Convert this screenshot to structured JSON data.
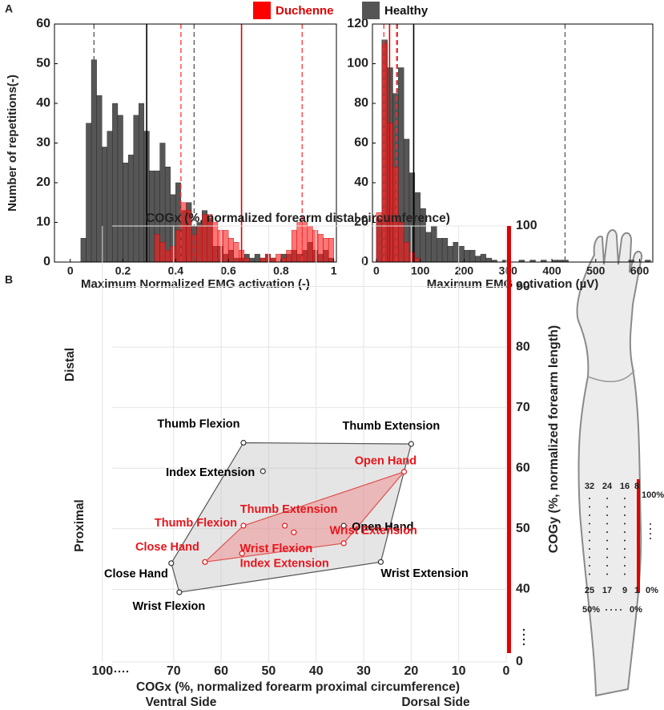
{
  "chart_data": [
    {
      "type": "histogram",
      "panel": "A",
      "xlabel": "Maximum Normalized EMG activation (-)",
      "ylabel": "Number of repetitions(-)",
      "bins": [
        0,
        0.02,
        0.04,
        0.06,
        0.08,
        0.1,
        0.12,
        0.14,
        0.16,
        0.18,
        0.2,
        0.22,
        0.24,
        0.26,
        0.28,
        0.3,
        0.32,
        0.34,
        0.36,
        0.38,
        0.4,
        0.42,
        0.44,
        0.46,
        0.48,
        0.5,
        0.52,
        0.54,
        0.56,
        0.58,
        0.6,
        0.62,
        0.64,
        0.66,
        0.68,
        0.7,
        0.72,
        0.74,
        0.76,
        0.78,
        0.8,
        0.82,
        0.84,
        0.86,
        0.88,
        0.9,
        0.92,
        0.94,
        0.96,
        0.98,
        1
      ],
      "series": [
        {
          "name": "Healthy",
          "color": "#4d4d4d",
          "values": [
            0,
            0,
            6,
            35,
            51,
            42,
            29,
            33,
            40,
            37,
            25,
            27,
            37,
            40,
            33,
            23,
            23,
            30,
            24,
            17,
            20,
            13,
            15,
            9,
            10,
            13,
            11,
            4,
            4,
            2,
            3,
            1,
            1,
            2,
            1,
            2,
            1,
            2,
            1,
            0,
            2,
            2,
            3,
            2,
            3,
            5,
            3,
            2,
            3,
            1
          ]
        },
        {
          "name": "Duchenne",
          "color": "#ff1a1a",
          "values": [
            0,
            0,
            0,
            0,
            0,
            0,
            0,
            0,
            0,
            0,
            0,
            0,
            0,
            0,
            0,
            0,
            7,
            5,
            3,
            4,
            8,
            15,
            13,
            7,
            9,
            12,
            12,
            10,
            8,
            8,
            6,
            5,
            3,
            1,
            0,
            0,
            1,
            2,
            1,
            2,
            1,
            3,
            8,
            10,
            10,
            9,
            8,
            7,
            6,
            6
          ]
        }
      ],
      "vlines": [
        {
          "x": 0.09,
          "color": "#555555",
          "dash": true
        },
        {
          "x": 0.29,
          "color": "#000000",
          "dash": false
        },
        {
          "x": 0.47,
          "color": "#555555",
          "dash": true
        },
        {
          "x": 0.42,
          "color": "#ff3030",
          "dash": true
        },
        {
          "x": 0.65,
          "color": "#e00000",
          "dash": false
        },
        {
          "x": 0.88,
          "color": "#ff3030",
          "dash": true
        }
      ],
      "xlim": [
        -0.06,
        1.01
      ],
      "xticks": [
        0,
        0.2,
        0.4,
        0.6,
        0.8,
        1
      ],
      "ylim": [
        0,
        60
      ],
      "yticks": [
        0,
        10,
        20,
        30,
        40,
        50,
        60
      ]
    },
    {
      "type": "histogram",
      "xlabel": "Maximum EMG activation (µV)",
      "bins": [
        0,
        12.5,
        25,
        37.5,
        50,
        62.5,
        75,
        87.5,
        100,
        112.5,
        125,
        137.5,
        150,
        162.5,
        175,
        187.5,
        200,
        212.5,
        225,
        237.5,
        250,
        262.5,
        275,
        287.5,
        300,
        312.5,
        325,
        337.5,
        350,
        362.5,
        375,
        387.5,
        400,
        412.5,
        425,
        437.5,
        450,
        462.5,
        475,
        487.5,
        500,
        512.5,
        525,
        537.5,
        550,
        562.5,
        575,
        587.5,
        600,
        612.5,
        625
      ],
      "series": [
        {
          "color": "#4d4d4d",
          "values": [
            22,
            112,
            98,
            85,
            98,
            62,
            45,
            35,
            27,
            15,
            18,
            12,
            12,
            8,
            10,
            8,
            6,
            6,
            3,
            4,
            2,
            1,
            0,
            1,
            0,
            0,
            1,
            0,
            1,
            0,
            1,
            0,
            1,
            1,
            1,
            0,
            0,
            0,
            0,
            0,
            0,
            0,
            0,
            0,
            0,
            0,
            1,
            0,
            0,
            1
          ]
        },
        {
          "color": "#ff1a1a",
          "values": [
            25,
            110,
            70,
            48,
            20,
            10,
            5,
            2,
            0,
            0,
            0,
            0,
            0,
            0,
            0,
            0,
            0,
            0,
            0,
            0,
            0,
            0,
            0,
            0,
            0,
            0,
            0,
            0,
            0,
            0,
            0,
            0,
            0,
            0,
            0,
            0,
            0,
            0,
            0,
            0,
            0,
            0,
            0,
            0,
            0,
            0,
            0,
            0,
            0,
            0
          ]
        }
      ],
      "vlines": [
        {
          "x": 48,
          "color": "#555555",
          "dash": true
        },
        {
          "x": 85,
          "color": "#000000",
          "dash": false
        },
        {
          "x": 430,
          "color": "#555555",
          "dash": true
        },
        {
          "x": 17,
          "color": "#ff3030",
          "dash": true
        },
        {
          "x": 30,
          "color": "#e00000",
          "dash": false
        },
        {
          "x": 46,
          "color": "#ff3030",
          "dash": true
        }
      ],
      "xlim": [
        -9,
        630
      ],
      "xticks": [
        0,
        100,
        200,
        300,
        400,
        500,
        600
      ],
      "ylim": [
        0,
        120
      ],
      "yticks": [
        0,
        20,
        40,
        60,
        80,
        100,
        120
      ]
    },
    {
      "type": "scatter",
      "panel": "B",
      "x2label": "COGx (%, normalized forearm distal circumference)",
      "xlabel": "COGx (%, normalized forearm proximal circumference)",
      "ylabel": "COGy (%, normalized forearm length)",
      "annotations": [
        "Distal",
        "Proximal",
        "Ventral Side",
        "Dorsal Side"
      ],
      "series": [
        {
          "color": "#000000",
          "hull_color": "#bdbdbd",
          "labels": [
            "Thumb Flexion",
            "Thumb Extension",
            "Index Extension",
            "Open Hand",
            "Wrist Extension",
            "Close Hand",
            "Wrist Flexion"
          ],
          "x": [
            55.3,
            20,
            51.2,
            34.2,
            26.4,
            70.5,
            68.8
          ],
          "y": [
            64.2,
            64,
            59.5,
            50.5,
            44.5,
            44.3,
            39.5
          ]
        },
        {
          "color": "#e8141b",
          "hull_color": "#f08080",
          "labels": [
            "Open Hand",
            "Thumb Extension",
            "Thumb Flexion",
            "Wrist Flexion",
            "Wrist Extension",
            "Index Extension",
            "Close Hand"
          ],
          "x": [
            21.5,
            46.6,
            55.3,
            44.7,
            34.2,
            55.6,
            63.4
          ],
          "y": [
            59.4,
            50.5,
            50.5,
            49.4,
            47.6,
            45.9,
            44.5
          ]
        }
      ],
      "xlim": [
        103,
        0
      ],
      "xbreak": [
        75,
        90
      ],
      "xticks": [
        100,
        70,
        60,
        50,
        40,
        30,
        20,
        10,
        0
      ],
      "ylim": [
        0,
        100
      ],
      "ybreak": [
        8,
        36
      ],
      "yticks": [
        0,
        40,
        50,
        60,
        70,
        80,
        90,
        100
      ],
      "grid": true
    }
  ],
  "legend": {
    "names": [
      "Duchenne",
      "Healthy"
    ],
    "colors": [
      "#ff0000",
      "#555555"
    ]
  },
  "forearm_labels": {
    "top_numbers": [
      "32",
      "24",
      "16",
      "8"
    ],
    "bottom_numbers": [
      "25",
      "17",
      "9",
      "1"
    ],
    "right_labels": [
      "100%",
      "0%"
    ],
    "bottom_labels": [
      "50%",
      "0%"
    ]
  }
}
